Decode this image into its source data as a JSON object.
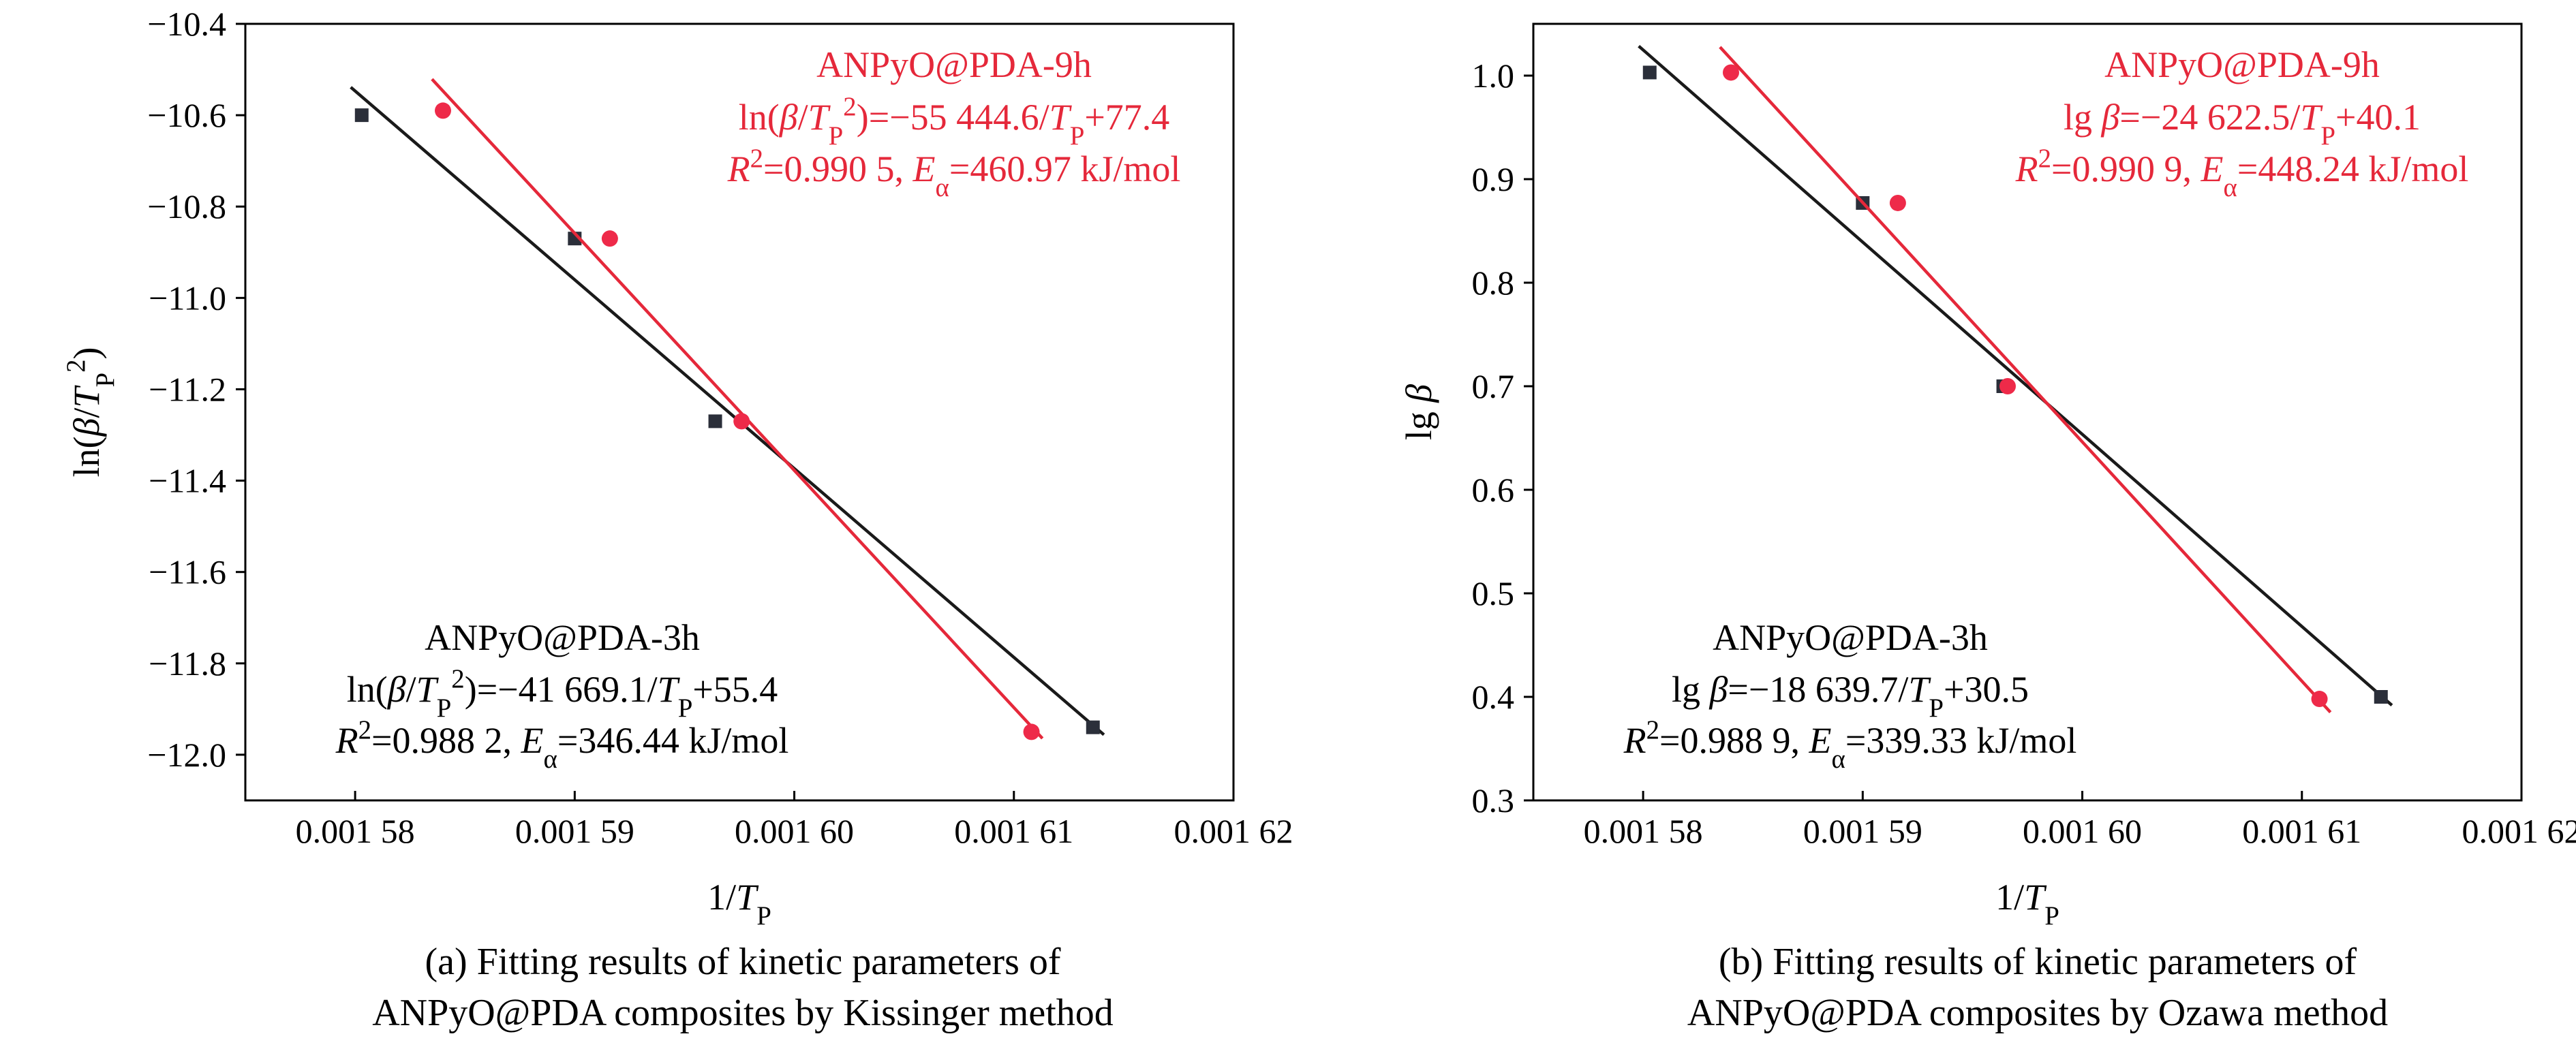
{
  "chart_data": [
    {
      "type": "scatter",
      "panel": "a",
      "xlabel": "1/T_P",
      "ylabel": "ln(β/T_P^2)",
      "xlim": [
        0.001575,
        0.00162
      ],
      "ylim": [
        -12.1,
        -10.4
      ],
      "xticks": [
        0.00158,
        0.00159,
        0.0016,
        0.00161,
        0.00162
      ],
      "xtick_labels": [
        "0.001 58",
        "0.001 59",
        "0.001 60",
        "0.001 61",
        "0.001 62"
      ],
      "yticks": [
        -10.4,
        -10.6,
        -10.8,
        -11.0,
        -11.2,
        -11.4,
        -11.6,
        -11.8,
        -12.0
      ],
      "ytick_labels": [
        "−10.4",
        "−10.6",
        "−10.8",
        "−11.0",
        "−11.2",
        "−11.4",
        "−11.6",
        "−11.8",
        "−12.0"
      ],
      "series": [
        {
          "name": "ANPyO@PDA-3h",
          "color": "#1a1a1a",
          "marker": "square",
          "x": [
            0.0015803,
            0.00159,
            0.0015964,
            0.0016136
          ],
          "y": [
            -10.6,
            -10.87,
            -11.27,
            -11.94
          ],
          "fit": {
            "slope": -41669.1,
            "intercept": 55.4
          },
          "annotation": [
            "ANPyO@PDA-3h",
            "ln(β/T_P^2)=−41 669.1/T_P+55.4",
            "R^2=0.988 2, E_α=346.44 kJ/mol"
          ]
        },
        {
          "name": "ANPyO@PDA-9h",
          "color": "#e5283a",
          "marker": "circle",
          "x": [
            0.001584,
            0.0015916,
            0.0015976,
            0.0016108
          ],
          "y": [
            -10.59,
            -10.87,
            -11.27,
            -11.95
          ],
          "fit": {
            "slope": -55444.6,
            "intercept": 77.4
          },
          "annotation": [
            "ANPyO@PDA-9h",
            "ln(β/T_P^2)=−55 444.6/T_P+77.4",
            "R^2=0.990 5, E_α=460.97 kJ/mol"
          ]
        }
      ],
      "caption": [
        "(a) Fitting results of kinetic parameters of",
        "ANPyO@PDA composites by Kissinger method"
      ]
    },
    {
      "type": "scatter",
      "panel": "b",
      "xlabel": "1/T_P",
      "ylabel": "lg β",
      "xlim": [
        0.001575,
        0.00162
      ],
      "ylim": [
        0.3,
        1.05
      ],
      "xticks": [
        0.00158,
        0.00159,
        0.0016,
        0.00161,
        0.00162
      ],
      "xtick_labels": [
        "0.001 58",
        "0.001 59",
        "0.001 60",
        "0.001 61",
        "0.001 62"
      ],
      "yticks": [
        0.3,
        0.4,
        0.5,
        0.6,
        0.7,
        0.8,
        0.9,
        1.0
      ],
      "ytick_labels": [
        "0.3",
        "0.4",
        "0.5",
        "0.6",
        "0.7",
        "0.8",
        "0.9",
        "1.0"
      ],
      "series": [
        {
          "name": "ANPyO@PDA-3h",
          "color": "#1a1a1a",
          "marker": "square",
          "x": [
            0.0015803,
            0.00159,
            0.0015964,
            0.0016136
          ],
          "y": [
            1.003,
            0.877,
            0.7,
            0.4
          ],
          "fit": {
            "slope": -18639.7,
            "intercept": 30.5
          },
          "annotation": [
            "ANPyO@PDA-3h",
            "lg β=−18 639.7/T_P+30.5",
            "R^2=0.988 9, E_α=339.33 kJ/mol"
          ]
        },
        {
          "name": "ANPyO@PDA-9h",
          "color": "#e5283a",
          "marker": "circle",
          "x": [
            0.001584,
            0.0015916,
            0.0015966,
            0.0016108
          ],
          "y": [
            1.003,
            0.877,
            0.7,
            0.398
          ],
          "fit": {
            "slope": -24622.5,
            "intercept": 40.1
          },
          "annotation": [
            "ANPyO@PDA-9h",
            "lg β=−24 622.5/T_P+40.1",
            "R^2=0.990 9, E_α=448.24 kJ/mol"
          ]
        }
      ],
      "caption": [
        "(b) Fitting results of kinetic parameters of",
        "ANPyO@PDA composites by Ozawa method"
      ]
    }
  ]
}
